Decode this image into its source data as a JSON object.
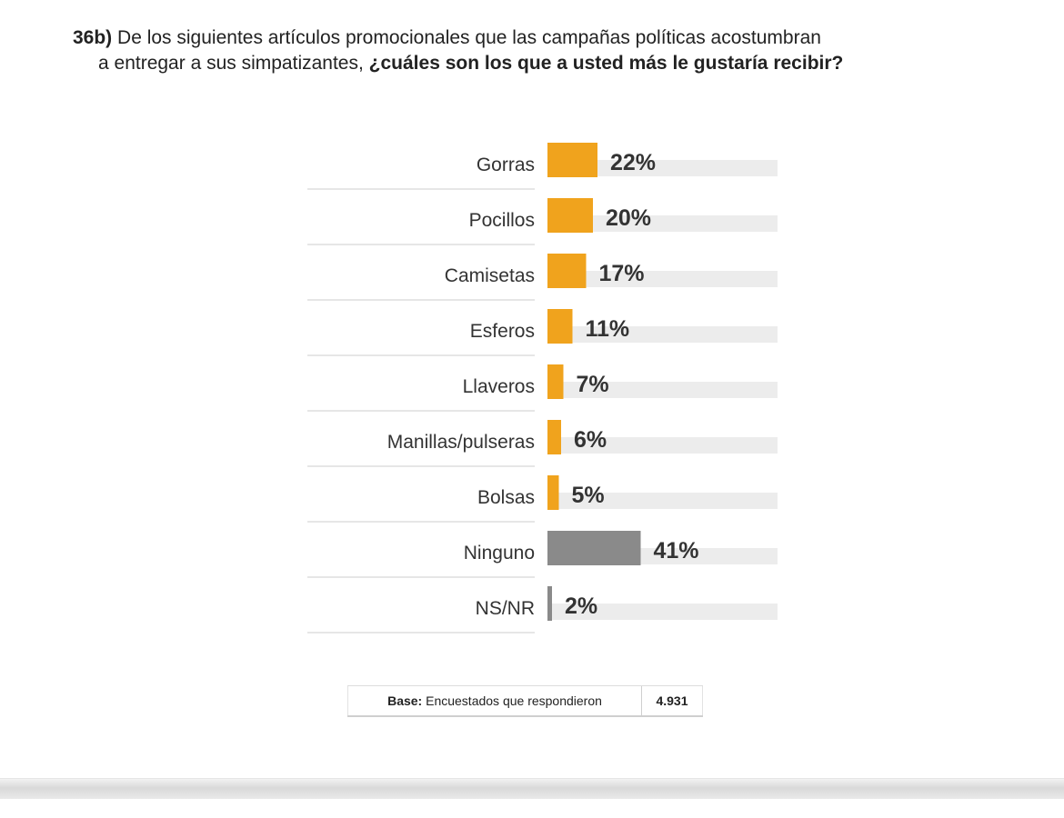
{
  "question": {
    "number": "36b)",
    "text_part1": "De los siguientes artículos promocionales que las campañas políticas acostumbran",
    "text_part2": "a  entregar a sus simpatizantes,",
    "text_bold": "¿cuáles son los que a usted más le gustaría recibir?"
  },
  "chart_data": {
    "type": "bar",
    "orientation": "horizontal",
    "title": "",
    "xlabel": "",
    "ylabel": "",
    "xlim": [
      0,
      100
    ],
    "grid": false,
    "legend": "none",
    "categories": [
      "Gorras",
      "Pocillos",
      "Camisetas",
      "Esferos",
      "Llaveros",
      "Manillas/pulseras",
      "Bolsas",
      "Ninguno",
      "NS/NR"
    ],
    "values": [
      22,
      20,
      17,
      11,
      7,
      6,
      5,
      41,
      2
    ],
    "value_labels": [
      "22%",
      "20%",
      "17%",
      "11%",
      "7%",
      "6%",
      "5%",
      "41%",
      "2%"
    ],
    "bar_colors": [
      "#f0a31d",
      "#f0a31d",
      "#f0a31d",
      "#f0a31d",
      "#f0a31d",
      "#f0a31d",
      "#f0a31d",
      "#8a8a8a",
      "#8a8a8a"
    ],
    "track_color": "#ececec"
  },
  "base": {
    "label": "Base:",
    "text": "Encuestados que respondieron",
    "value": "4.931"
  }
}
